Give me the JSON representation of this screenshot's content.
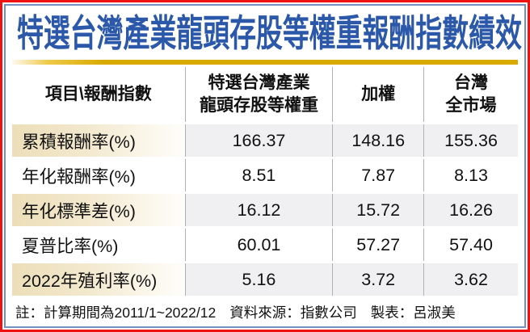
{
  "title": {
    "text": "特選台灣產業龍頭存股等權重報酬指數績效",
    "color": "#2b58a8",
    "rule_color": "#d9aa00"
  },
  "frame": {
    "outer_border_color": "#ee1212",
    "inner_border_color": "#7191c1"
  },
  "table": {
    "headers": [
      "項目\\報酬指數",
      "特選台灣產業\n龍頭存股等權重",
      "加權",
      "台灣\n全市場"
    ],
    "rows": [
      {
        "label": "累積報酬率(%)",
        "values": [
          "166.37",
          "148.16",
          "155.36"
        ]
      },
      {
        "label": "年化報酬率(%)",
        "values": [
          "8.51",
          "7.87",
          "8.13"
        ]
      },
      {
        "label": "年化標準差(%)",
        "values": [
          "16.12",
          "15.72",
          "16.26"
        ]
      },
      {
        "label": "夏普比率(%)",
        "values": [
          "60.01",
          "57.27",
          "57.40"
        ]
      },
      {
        "label": "2022年殖利率(%)",
        "values": [
          "5.16",
          "3.72",
          "3.62"
        ]
      }
    ],
    "shaded_label_bg": "#ecdeb8",
    "shaded_value_bg": "#f0f0f3",
    "separator_color": "#b0b0b0"
  },
  "footnote": {
    "note": "註：計算期間為2011/1~2022/12",
    "source": "資料來源：指數公司",
    "credit": "製表：呂淑美"
  }
}
